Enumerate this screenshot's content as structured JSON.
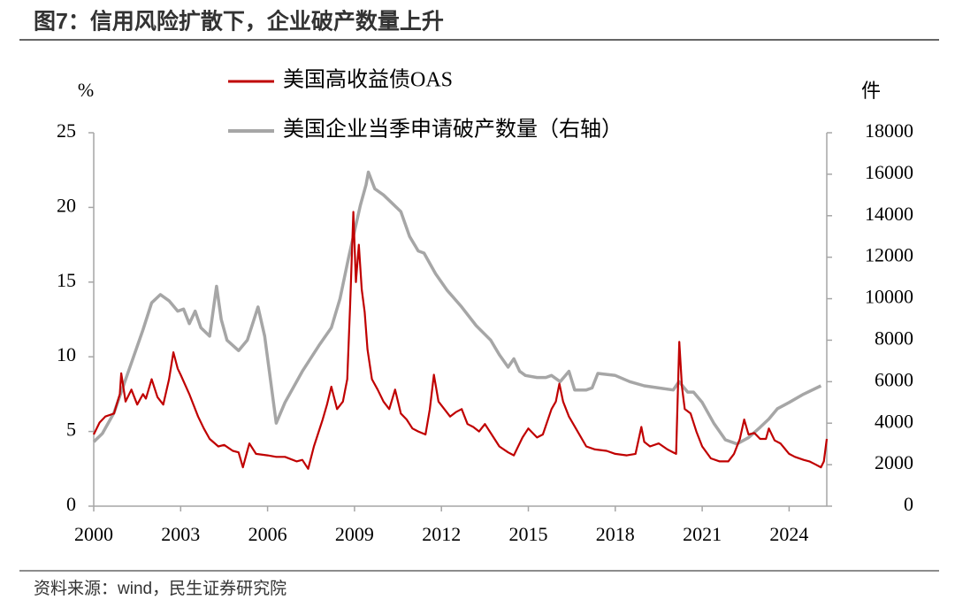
{
  "chart_data": {
    "type": "line",
    "title": "图7：信用风险扩散下，企业破产数量上升",
    "source": "资料来源：wind，民生证券研究院",
    "y_label": "%",
    "y2_label": "件",
    "xlim": [
      2000,
      2025.3
    ],
    "xticks": [
      2000,
      2003,
      2006,
      2009,
      2012,
      2015,
      2018,
      2021,
      2024
    ],
    "ylim": [
      0,
      25
    ],
    "yticks": [
      0,
      5,
      10,
      15,
      20,
      25
    ],
    "y2lim": [
      0,
      18000
    ],
    "y2ticks": [
      0,
      2000,
      4000,
      6000,
      8000,
      10000,
      12000,
      14000,
      16000,
      18000
    ],
    "series": [
      {
        "name": "美国高收益债OAS",
        "color": "#c00000",
        "axis": "y",
        "x": [
          2000.0,
          2000.2,
          2000.4,
          2000.7,
          2000.9,
          2000.95,
          2001.1,
          2001.3,
          2001.5,
          2001.7,
          2001.8,
          2002.0,
          2002.2,
          2002.4,
          2002.6,
          2002.75,
          2002.9,
          2003.0,
          2003.3,
          2003.6,
          2003.8,
          2004.0,
          2004.3,
          2004.5,
          2004.8,
          2005.0,
          2005.15,
          2005.37,
          2005.6,
          2006.0,
          2006.3,
          2006.6,
          2007.0,
          2007.2,
          2007.4,
          2007.6,
          2007.9,
          2008.05,
          2008.2,
          2008.4,
          2008.6,
          2008.75,
          2008.85,
          2008.96,
          2009.05,
          2009.15,
          2009.25,
          2009.35,
          2009.45,
          2009.6,
          2009.8,
          2010.0,
          2010.2,
          2010.4,
          2010.6,
          2010.8,
          2011.0,
          2011.2,
          2011.45,
          2011.6,
          2011.74,
          2011.9,
          2012.1,
          2012.3,
          2012.5,
          2012.7,
          2012.9,
          2013.1,
          2013.3,
          2013.5,
          2013.8,
          2014.0,
          2014.3,
          2014.5,
          2014.8,
          2015.0,
          2015.3,
          2015.5,
          2015.8,
          2015.95,
          2016.07,
          2016.2,
          2016.4,
          2016.7,
          2017.0,
          2017.3,
          2017.7,
          2018.0,
          2018.4,
          2018.7,
          2018.9,
          2019.0,
          2019.2,
          2019.5,
          2019.8,
          2020.1,
          2020.21,
          2020.3,
          2020.4,
          2020.6,
          2020.8,
          2021.0,
          2021.3,
          2021.6,
          2021.9,
          2022.1,
          2022.3,
          2022.45,
          2022.6,
          2022.8,
          2023.0,
          2023.2,
          2023.3,
          2023.5,
          2023.7,
          2024.0,
          2024.2,
          2024.5,
          2024.7,
          2024.9,
          2025.1,
          2025.2,
          2025.3
        ],
        "values": [
          4.8,
          5.6,
          6.0,
          6.2,
          7.5,
          8.9,
          7.0,
          7.8,
          6.8,
          7.5,
          7.2,
          8.5,
          7.3,
          6.8,
          8.5,
          10.3,
          9.2,
          8.8,
          7.5,
          6.0,
          5.2,
          4.5,
          4.0,
          4.1,
          3.7,
          3.6,
          2.6,
          4.2,
          3.5,
          3.4,
          3.3,
          3.3,
          3.0,
          3.1,
          2.5,
          4.0,
          5.8,
          6.8,
          8.0,
          6.5,
          7.0,
          8.5,
          13.5,
          19.7,
          15.0,
          17.5,
          14.5,
          13.0,
          10.5,
          8.5,
          7.8,
          7.0,
          6.5,
          7.8,
          6.2,
          5.8,
          5.2,
          5.0,
          4.8,
          6.5,
          8.8,
          7.0,
          6.5,
          6.0,
          6.3,
          6.5,
          5.5,
          5.3,
          5.0,
          5.5,
          4.6,
          4.0,
          3.6,
          3.4,
          4.6,
          5.2,
          4.6,
          4.8,
          6.5,
          7.0,
          8.2,
          7.0,
          6.0,
          5.0,
          4.0,
          3.8,
          3.7,
          3.5,
          3.4,
          3.5,
          5.3,
          4.3,
          4.0,
          4.2,
          3.8,
          3.5,
          11.0,
          8.0,
          6.5,
          6.2,
          5.0,
          4.0,
          3.2,
          3.0,
          3.0,
          3.5,
          4.5,
          5.8,
          4.8,
          4.9,
          4.5,
          4.5,
          5.2,
          4.4,
          4.2,
          3.5,
          3.3,
          3.1,
          3.0,
          2.8,
          2.6,
          3.0,
          4.5
        ]
      },
      {
        "name": "美国企业当季申请破产数量（右轴）",
        "color": "#a6a6a6",
        "axis": "y2",
        "x": [
          2000.0,
          2000.3,
          2000.7,
          2001.2,
          2001.7,
          2002.0,
          2002.3,
          2002.6,
          2002.9,
          2003.1,
          2003.3,
          2003.5,
          2003.7,
          2004.0,
          2004.24,
          2004.4,
          2004.6,
          2005.0,
          2005.3,
          2005.67,
          2005.9,
          2006.3,
          2006.6,
          2007.2,
          2007.8,
          2008.2,
          2008.5,
          2008.8,
          2009.2,
          2009.4,
          2009.48,
          2009.7,
          2010.0,
          2010.3,
          2010.6,
          2010.9,
          2011.2,
          2011.4,
          2011.8,
          2012.2,
          2012.7,
          2013.2,
          2013.7,
          2014.0,
          2014.3,
          2014.5,
          2014.7,
          2014.9,
          2015.3,
          2015.6,
          2015.8,
          2016.1,
          2016.4,
          2016.6,
          2017.0,
          2017.2,
          2017.4,
          2018.0,
          2018.5,
          2019.0,
          2019.5,
          2020.0,
          2020.2,
          2020.5,
          2020.7,
          2021.0,
          2021.4,
          2021.8,
          2022.2,
          2022.6,
          2023.0,
          2023.3,
          2023.6,
          2024.0,
          2024.5,
          2025.1
        ],
        "values": [
          3100,
          3500,
          4500,
          6500,
          8500,
          9800,
          10200,
          9900,
          9400,
          9500,
          8800,
          9400,
          8600,
          8200,
          10600,
          9000,
          8000,
          7500,
          8000,
          9600,
          8200,
          4000,
          5000,
          6500,
          7800,
          8600,
          10000,
          12000,
          14500,
          15500,
          16100,
          15300,
          15000,
          14600,
          14200,
          13000,
          12300,
          12200,
          11200,
          10400,
          9600,
          8700,
          8000,
          7300,
          6700,
          7100,
          6500,
          6300,
          6200,
          6200,
          6300,
          6000,
          6500,
          5600,
          5600,
          5700,
          6400,
          6300,
          6000,
          5800,
          5700,
          5600,
          6000,
          5500,
          5500,
          5000,
          4000,
          3200,
          3000,
          3300,
          3800,
          4200,
          4700,
          5000,
          5400,
          5800
        ]
      }
    ]
  }
}
